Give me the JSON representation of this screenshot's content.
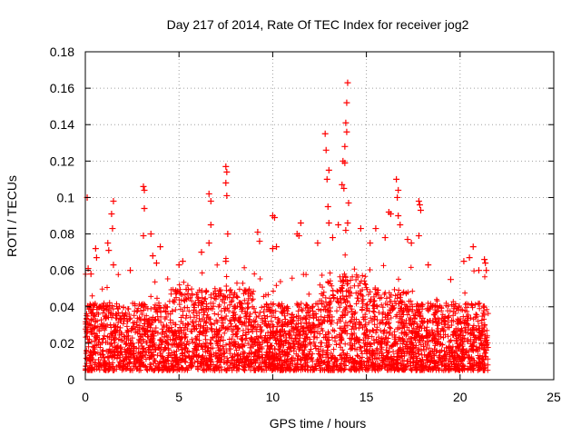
{
  "chart_data": {
    "type": "scatter",
    "title": "Day 217 of 2014, Rate Of TEC Index for receiver jog2",
    "xlabel": "GPS time / hours",
    "ylabel": "ROTI / TECUs",
    "xlim": [
      0,
      25
    ],
    "ylim": [
      0,
      0.18
    ],
    "xticks": [
      0,
      5,
      10,
      15,
      20,
      25
    ],
    "yticks": [
      0,
      0.02,
      0.04,
      0.06,
      0.08,
      0.1,
      0.12,
      0.14,
      0.16,
      0.18
    ],
    "xtick_labels": [
      "0",
      "5",
      "10",
      "15",
      "20",
      "25"
    ],
    "ytick_labels": [
      "0",
      "0.02",
      "0.04",
      "0.06",
      "0.08",
      "0.1",
      "0.12",
      "0.14",
      "0.16",
      "0.18"
    ],
    "grid": true,
    "marker": "+",
    "marker_color": "#ff0000",
    "series": [
      {
        "name": "ROTI",
        "points": [
          [
            0.1,
            0.1
          ],
          [
            0.15,
            0.061
          ],
          [
            0.3,
            0.058
          ],
          [
            0.55,
            0.072
          ],
          [
            0.6,
            0.067
          ],
          [
            1.2,
            0.075
          ],
          [
            1.25,
            0.071
          ],
          [
            1.4,
            0.091
          ],
          [
            1.5,
            0.098
          ],
          [
            1.45,
            0.083
          ],
          [
            1.5,
            0.063
          ],
          [
            2.4,
            0.06
          ],
          [
            3.1,
            0.106
          ],
          [
            3.15,
            0.104
          ],
          [
            3.15,
            0.094
          ],
          [
            3.1,
            0.079
          ],
          [
            3.5,
            0.08
          ],
          [
            3.6,
            0.068
          ],
          [
            3.8,
            0.064
          ],
          [
            4.0,
            0.073
          ],
          [
            5.0,
            0.063
          ],
          [
            5.2,
            0.065
          ],
          [
            6.2,
            0.07
          ],
          [
            6.6,
            0.102
          ],
          [
            6.7,
            0.098
          ],
          [
            6.7,
            0.085
          ],
          [
            6.6,
            0.075
          ],
          [
            7.5,
            0.117
          ],
          [
            7.55,
            0.114
          ],
          [
            7.5,
            0.108
          ],
          [
            7.55,
            0.101
          ],
          [
            7.6,
            0.08
          ],
          [
            7.5,
            0.065
          ],
          [
            9.2,
            0.081
          ],
          [
            9.3,
            0.076
          ],
          [
            10.0,
            0.09
          ],
          [
            10.1,
            0.089
          ],
          [
            10.2,
            0.073
          ],
          [
            10.0,
            0.072
          ],
          [
            11.3,
            0.08
          ],
          [
            11.5,
            0.086
          ],
          [
            11.4,
            0.079
          ],
          [
            12.4,
            0.075
          ],
          [
            12.8,
            0.135
          ],
          [
            12.85,
            0.126
          ],
          [
            13.0,
            0.115
          ],
          [
            12.9,
            0.11
          ],
          [
            12.95,
            0.095
          ],
          [
            13.0,
            0.086
          ],
          [
            13.2,
            0.078
          ],
          [
            13.5,
            0.085
          ],
          [
            13.7,
            0.107
          ],
          [
            13.8,
            0.105
          ],
          [
            13.75,
            0.12
          ],
          [
            13.85,
            0.119
          ],
          [
            14.0,
            0.163
          ],
          [
            13.95,
            0.152
          ],
          [
            13.9,
            0.141
          ],
          [
            13.95,
            0.136
          ],
          [
            13.85,
            0.128
          ],
          [
            14.05,
            0.097
          ],
          [
            14.0,
            0.086
          ],
          [
            13.9,
            0.082
          ],
          [
            14.7,
            0.083
          ],
          [
            15.2,
            0.075
          ],
          [
            15.5,
            0.083
          ],
          [
            16.0,
            0.078
          ],
          [
            16.2,
            0.092
          ],
          [
            16.3,
            0.091
          ],
          [
            16.6,
            0.11
          ],
          [
            16.7,
            0.104
          ],
          [
            16.65,
            0.1
          ],
          [
            16.7,
            0.09
          ],
          [
            16.8,
            0.085
          ],
          [
            17.2,
            0.077
          ],
          [
            17.4,
            0.075
          ],
          [
            17.8,
            0.098
          ],
          [
            17.85,
            0.096
          ],
          [
            17.9,
            0.093
          ],
          [
            17.8,
            0.079
          ],
          [
            18.3,
            0.063
          ],
          [
            19.5,
            0.055
          ],
          [
            20.2,
            0.065
          ],
          [
            20.5,
            0.067
          ],
          [
            20.7,
            0.073
          ],
          [
            21.0,
            0.06
          ],
          [
            21.3,
            0.066
          ],
          [
            21.35,
            0.064
          ],
          [
            21.4,
            0.06
          ]
        ]
      }
    ]
  }
}
